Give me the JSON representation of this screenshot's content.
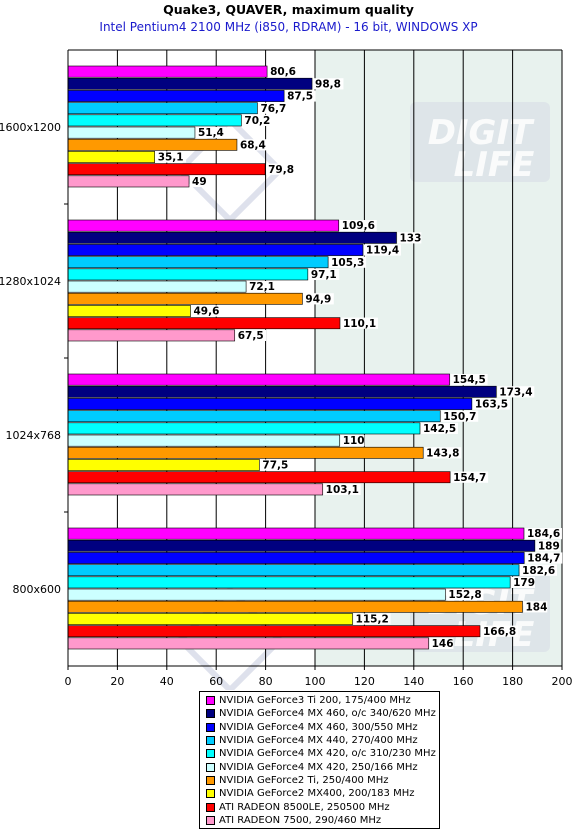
{
  "title": "Quake3, QUAVER, maximum quality",
  "subtitle": "Intel Pentium4 2100 MHz (i850, RDRAM) - 16 bit, WINDOWS XP",
  "watermark_text": "DIGIT LIFE",
  "colors": {
    "plot_background": "#e8f2ee",
    "grid": "#000000",
    "label_color": "#000000"
  },
  "chart_data": {
    "type": "bar",
    "orientation": "horizontal",
    "title": "Quake3, QUAVER, maximum quality",
    "subtitle": "Intel Pentium4 2100 MHz (i850, RDRAM) - 16 bit, WINDOWS XP",
    "categories": [
      "1600x1200",
      "1280x1024",
      "1024x768",
      "800x600"
    ],
    "xlim": [
      0,
      200
    ],
    "x_ticks": [
      "0",
      "20",
      "40",
      "60",
      "80",
      "100",
      "120",
      "140",
      "160",
      "180",
      "200"
    ],
    "grid": true,
    "legend_position": "bottom",
    "series": [
      {
        "name": "NVIDIA GeForce3 Ti 200, 175/400 MHz",
        "color": "#ff00ff",
        "values": [
          80.6,
          109.6,
          154.5,
          184.6
        ],
        "labels": [
          "80,6",
          "109,6",
          "154,5",
          "184,6"
        ]
      },
      {
        "name": "NVIDIA GeForce4 MX 460, o/c 340/620 MHz",
        "color": "#000080",
        "values": [
          98.8,
          133,
          173.4,
          189
        ],
        "labels": [
          "98,8",
          "133",
          "173,4",
          "189"
        ]
      },
      {
        "name": "NVIDIA GeForce4 MX 460, 300/550 MHz",
        "color": "#0000ff",
        "values": [
          87.5,
          119.4,
          163.5,
          184.7
        ],
        "labels": [
          "87,5",
          "119,4",
          "163,5",
          "184,7"
        ]
      },
      {
        "name": "NVIDIA GeForce4 MX 440, 270/400 MHz",
        "color": "#00ccff",
        "values": [
          76.7,
          105.3,
          150.7,
          182.6
        ],
        "labels": [
          "76,7",
          "105,3",
          "150,7",
          "182,6"
        ]
      },
      {
        "name": "NVIDIA GeForce4 MX 420, o/c 310/230 MHz",
        "color": "#00ffff",
        "values": [
          70.2,
          97.1,
          142.5,
          179
        ],
        "labels": [
          "70,2",
          "97,1",
          "142,5",
          "179"
        ]
      },
      {
        "name": "NVIDIA GeForce4 MX 420, 250/166 MHz",
        "color": "#ccffff",
        "values": [
          51.4,
          72.1,
          110,
          152.8
        ],
        "labels": [
          "51,4",
          "72,1",
          "110",
          "152,8"
        ]
      },
      {
        "name": "NVIDIA GeForce2 Ti, 250/400 MHz",
        "color": "#ff9900",
        "values": [
          68.4,
          94.9,
          143.8,
          184
        ],
        "labels": [
          "68,4",
          "94,9",
          "143,8",
          "184"
        ]
      },
      {
        "name": "NVIDIA GeForce2 MX400, 200/183 MHz",
        "color": "#ffff00",
        "values": [
          35.1,
          49.6,
          77.5,
          115.2
        ],
        "labels": [
          "35,1",
          "49,6",
          "77,5",
          "115,2"
        ]
      },
      {
        "name": "ATI RADEON 8500LE, 250500 MHz",
        "color": "#ff0000",
        "values": [
          79.8,
          110.1,
          154.7,
          166.8
        ],
        "labels": [
          "79,8",
          "110,1",
          "154,7",
          "166,8"
        ]
      },
      {
        "name": "ATI RADEON 7500, 290/460 MHz",
        "color": "#ff99cc",
        "values": [
          49,
          67.5,
          103.1,
          146
        ],
        "labels": [
          "49",
          "67,5",
          "103,1",
          "146"
        ]
      }
    ]
  }
}
